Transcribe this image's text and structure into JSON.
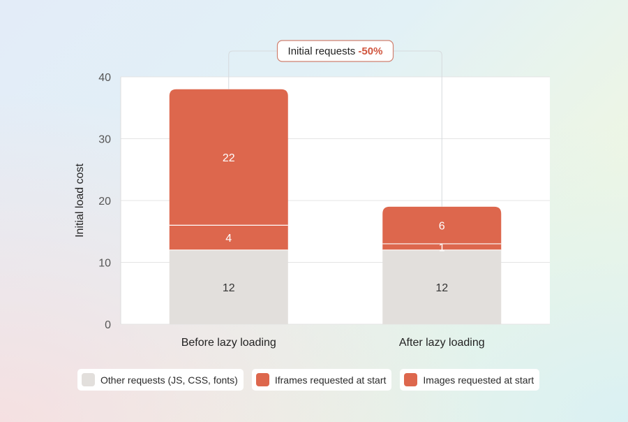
{
  "chart_data": {
    "type": "bar",
    "stacked": true,
    "categories": [
      "Before lazy loading",
      "After lazy loading"
    ],
    "series": [
      {
        "name": "Other requests (JS, CSS, fonts)",
        "values": [
          12,
          12
        ],
        "color": "#e2dfdc"
      },
      {
        "name": "Iframes requested at start",
        "values": [
          4,
          1
        ],
        "color": "#dd674d"
      },
      {
        "name": "Images requested at start",
        "values": [
          22,
          6
        ],
        "color": "#dd674d"
      }
    ],
    "ylabel": "Initial load cost",
    "xlabel": "",
    "ylim": [
      0,
      40
    ],
    "yticks": [
      0,
      10,
      20,
      30,
      40
    ],
    "grid": true,
    "legend": "bottom",
    "annotation": {
      "text": "Initial requests",
      "value": "-50%",
      "value_color": "#d0553e"
    }
  }
}
